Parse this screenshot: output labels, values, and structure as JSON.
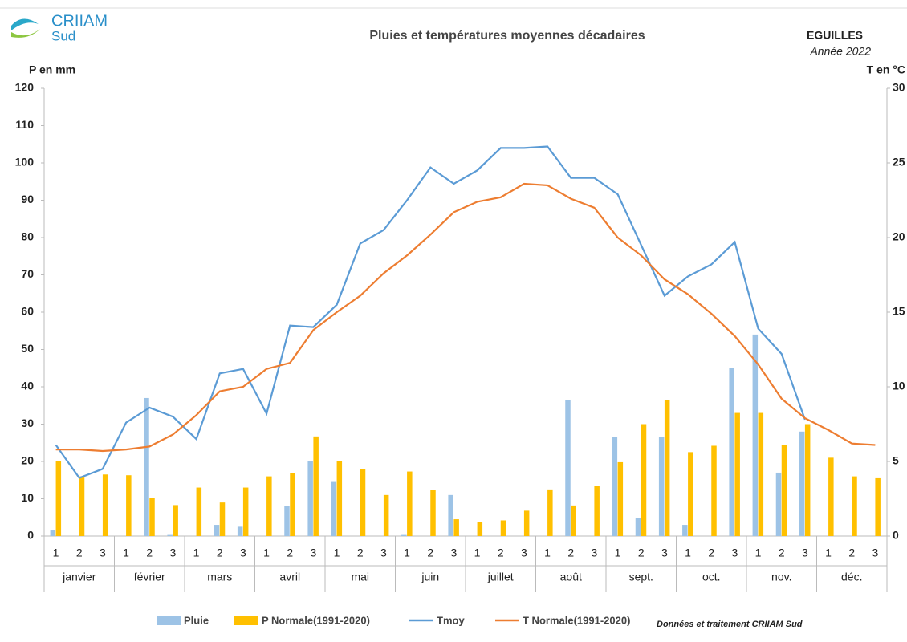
{
  "chart_data": {
    "type": "bar_line",
    "title": "Pluies et températures moyennes décadaires",
    "station": "EGUILLES",
    "year_label": "Année 2022",
    "logo_text": "CRIIAM",
    "logo_sub": "Sud",
    "y_label": "P en mm",
    "y2_label": "T en °C",
    "source": "Données et traitement  CRIIAM Sud",
    "categories": [
      "1",
      "2",
      "3",
      "1",
      "2",
      "3",
      "1",
      "2",
      "3",
      "1",
      "2",
      "3",
      "1",
      "2",
      "3",
      "1",
      "2",
      "3",
      "1",
      "2",
      "3",
      "1",
      "2",
      "3",
      "1",
      "2",
      "3",
      "1",
      "2",
      "3",
      "1",
      "2",
      "3",
      "1",
      "2",
      "3"
    ],
    "months": [
      "janvier",
      "février",
      "mars",
      "avril",
      "mai",
      "juin",
      "juillet",
      "août",
      "sept.",
      "oct.",
      "nov.",
      "déc."
    ],
    "ylim": [
      0,
      120
    ],
    "yticks": [
      0,
      10,
      20,
      30,
      40,
      50,
      60,
      70,
      80,
      90,
      100,
      110,
      120
    ],
    "y2lim": [
      0,
      30
    ],
    "y2ticks": [
      0,
      5,
      10,
      15,
      20,
      25,
      30
    ],
    "series": [
      {
        "name": "Pluie",
        "kind": "bar",
        "color": "#9dc3e6",
        "values": [
          1.5,
          0,
          0,
          0,
          37,
          0.3,
          0,
          3,
          2.5,
          0,
          8,
          20,
          14.5,
          0,
          0,
          0.3,
          0,
          11,
          0,
          0,
          0,
          0,
          36.5,
          0,
          26.5,
          4.8,
          26.5,
          3,
          0,
          45,
          54,
          17,
          28,
          0,
          0,
          0
        ]
      },
      {
        "name": "P Normale(1991-2020)",
        "kind": "bar",
        "color": "#ffc000",
        "values": [
          20,
          16,
          16.5,
          16.3,
          10.3,
          8.3,
          13,
          9,
          13,
          16,
          16.8,
          26.7,
          20,
          18,
          11,
          17.3,
          12.3,
          4.5,
          3.7,
          4.2,
          6.8,
          12.5,
          8.2,
          13.5,
          19.8,
          30,
          36.5,
          22.5,
          24.2,
          33,
          33,
          24.5,
          30,
          21,
          16,
          15.5
        ]
      },
      {
        "name": "Tmoy",
        "kind": "line",
        "axis": "y2",
        "color": "#5b9bd5",
        "values": [
          6.1,
          3.9,
          4.5,
          7.6,
          8.6,
          8.0,
          6.5,
          10.9,
          11.2,
          8.2,
          14.1,
          14.0,
          15.5,
          19.6,
          20.5,
          22.5,
          24.7,
          23.6,
          24.5,
          26.0,
          26.0,
          26.1,
          24.0,
          24.0,
          22.9,
          19.5,
          16.1,
          17.4,
          18.2,
          19.7,
          13.9,
          12.2,
          7.8,
          null,
          null,
          null
        ]
      },
      {
        "name": "T Normale(1991-2020)",
        "kind": "line",
        "axis": "y2",
        "color": "#ed7d31",
        "values": [
          5.8,
          5.8,
          5.7,
          5.8,
          6.0,
          6.8,
          8.1,
          9.7,
          10.0,
          11.2,
          11.6,
          13.8,
          15.0,
          16.1,
          17.6,
          18.8,
          20.2,
          21.7,
          22.4,
          22.7,
          23.6,
          23.5,
          22.6,
          22.0,
          20.0,
          18.8,
          17.2,
          16.2,
          14.9,
          13.4,
          11.5,
          9.2,
          7.9,
          7.1,
          6.2,
          6.1
        ]
      }
    ]
  }
}
